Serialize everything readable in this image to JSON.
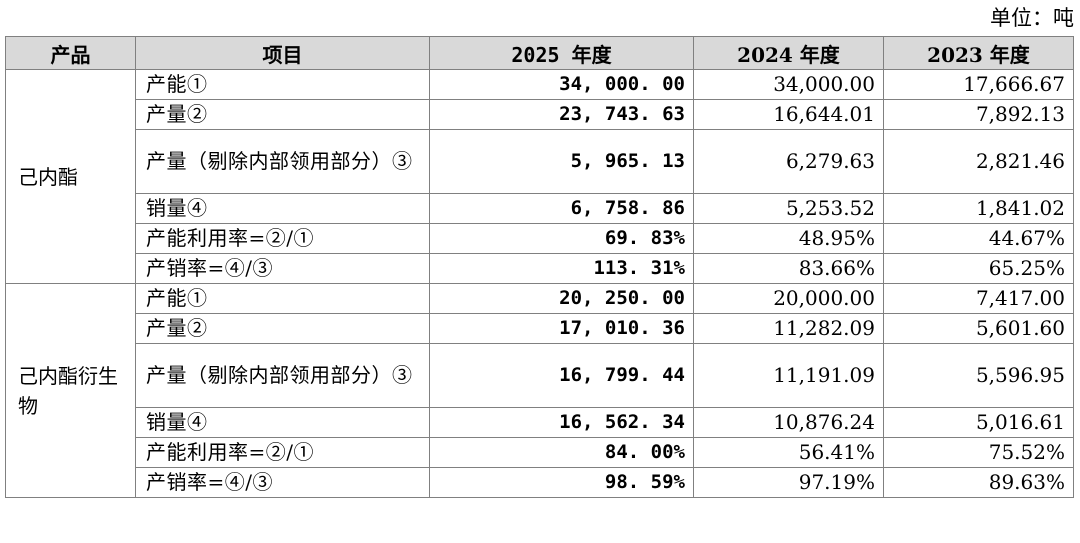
{
  "unit_label": "单位：吨",
  "headers": [
    "产品",
    "项目",
    "2025 年度",
    "2024 年度",
    "2023 年度"
  ],
  "groups": [
    {
      "product": "己内酯",
      "rows": [
        {
          "item": "产能①",
          "v2025": "34, 000. 00",
          "v2024": "34,000.00",
          "v2023": "17,666.67"
        },
        {
          "item": "产量②",
          "v2025": "23, 743. 63",
          "v2024": "16,644.01",
          "v2023": "7,892.13"
        },
        {
          "item": "产量（剔除内部领用部分）③",
          "v2025": "5, 965. 13",
          "v2024": "6,279.63",
          "v2023": "2,821.46"
        },
        {
          "item": "销量④",
          "v2025": "6, 758. 86",
          "v2024": "5,253.52",
          "v2023": "1,841.02"
        },
        {
          "item": "产能利用率=②/①",
          "v2025": "69. 83%",
          "v2024": "48.95%",
          "v2023": "44.67%"
        },
        {
          "item": "产销率=④/③",
          "v2025": "113. 31%",
          "v2024": "83.66%",
          "v2023": "65.25%"
        }
      ]
    },
    {
      "product": "己内酯衍生物",
      "rows": [
        {
          "item": "产能①",
          "v2025": "20, 250. 00",
          "v2024": "20,000.00",
          "v2023": "7,417.00"
        },
        {
          "item": "产量②",
          "v2025": "17, 010. 36",
          "v2024": "11,282.09",
          "v2023": "5,601.60"
        },
        {
          "item": "产量（剔除内部领用部分）③",
          "v2025": "16, 799. 44",
          "v2024": "11,191.09",
          "v2023": "5,596.95"
        },
        {
          "item": "销量④",
          "v2025": "16, 562. 34",
          "v2024": "10,876.24",
          "v2023": "5,016.61"
        },
        {
          "item": "产能利用率=②/①",
          "v2025": "84. 00%",
          "v2024": "56.41%",
          "v2023": "75.52%"
        },
        {
          "item": "产销率=④/③",
          "v2025": "98. 59%",
          "v2024": "97.19%",
          "v2023": "89.63%"
        }
      ]
    }
  ]
}
